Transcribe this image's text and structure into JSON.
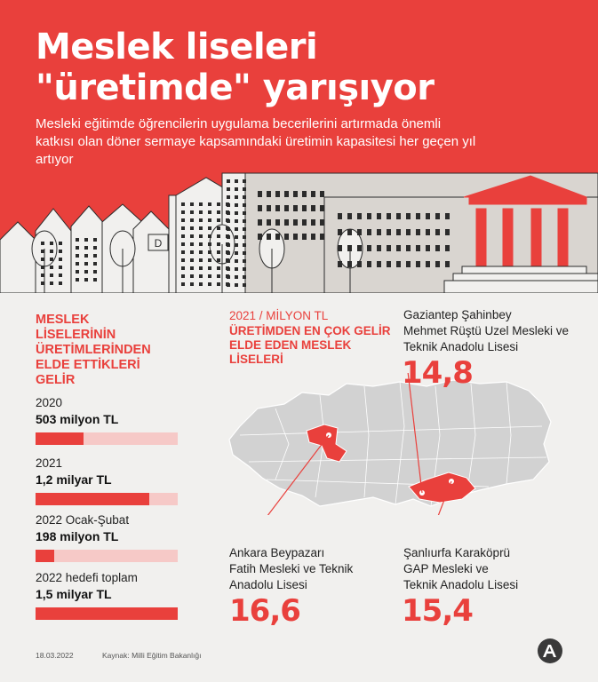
{
  "header": {
    "title_line1": "Meslek liseleri",
    "title_line2": "\"üretimde\" yarışıyor",
    "subtitle": "Mesleki eğitimde öğrencilerin uygulama becerilerini artırmada önemli katkısı olan döner sermaye kapsamındaki üretimin kapasitesi her geçen yıl artıyor",
    "sign_letter": "D"
  },
  "colors": {
    "accent": "#e9403c",
    "light_accent": "#f6c9c7",
    "map_gray": "#d2d2d2",
    "background": "#f1f0ee"
  },
  "chart_data": [
    {
      "type": "bar",
      "title": "MESLEK LİSELERİNİN ÜRETİMLERİNDEN ELDE ETTİKLERİ GELİR",
      "categories": [
        "2020",
        "2021",
        "2022 Ocak-Şubat",
        "2022 hedefi toplam"
      ],
      "value_labels": [
        "503 milyon TL",
        "1,2 milyar TL",
        "198 milyon TL",
        "1,5 milyar TL"
      ],
      "values": [
        503,
        1200,
        198,
        1500
      ],
      "unit": "milyon TL",
      "xlim": [
        0,
        1500
      ]
    },
    {
      "type": "map",
      "unit_label": "2021 / MİLYON TL",
      "title": "ÜRETİMDEN EN ÇOK GELİR ELDE EDEN MESLEK LİSELERİ",
      "schools": [
        {
          "name_lines": [
            "Gaziantep Şahinbey",
            "Mehmet Rüştü Uzel Mesleki ve",
            "Teknik Anadolu Lisesi"
          ],
          "value_label": "14,8",
          "value": 14.8
        },
        {
          "name_lines": [
            "Ankara Beypazarı",
            "Fatih Mesleki ve Teknik",
            "Anadolu Lisesi"
          ],
          "value_label": "16,6",
          "value": 16.6
        },
        {
          "name_lines": [
            "Şanlıurfa Karaköprü",
            "GAP Mesleki ve",
            "Teknik Anadolu Lisesi"
          ],
          "value_label": "15,4",
          "value": 15.4
        }
      ]
    }
  ],
  "footer": {
    "date": "18.03.2022",
    "source": "Kaynak: Milli Eğitim Bakanlığı"
  },
  "icons": {
    "logo": "aa-logo-icon"
  }
}
